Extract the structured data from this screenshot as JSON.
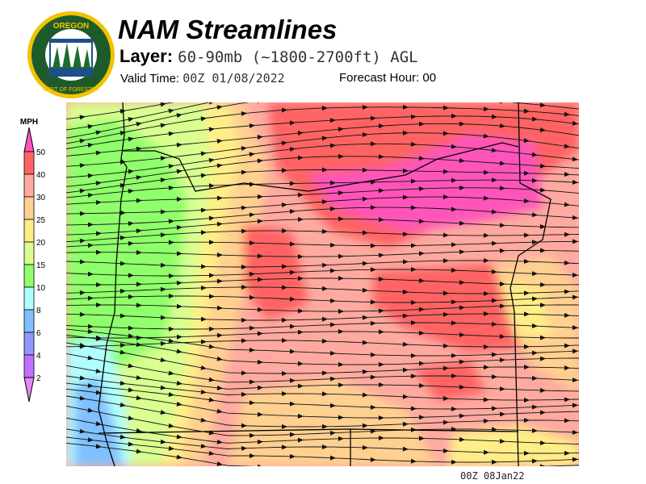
{
  "logo": {
    "top_text": "OREGON",
    "bottom_text": "DEPARTMENT OF FORESTRY"
  },
  "header": {
    "title": "NAM Streamlines",
    "layer_label": "Layer:",
    "layer_value": "60-90mb (~1800-2700ft) AGL",
    "valid_label": "Valid Time:",
    "valid_value": "00Z 01/08/2022",
    "forecast_label": "Forecast Hour:",
    "forecast_value": "00"
  },
  "colorbar": {
    "unit": "MPH",
    "ticks": [
      "50",
      "40",
      "30",
      "25",
      "20",
      "15",
      "10",
      "8",
      "6",
      "4",
      "2"
    ],
    "colors": [
      "#ff6464",
      "#ffaaa0",
      "#ffd090",
      "#ffee88",
      "#d8ff90",
      "#90ff6c",
      "#b0ffff",
      "#80c0ff",
      "#9098ff",
      "#c070ff"
    ],
    "over_color": "#ff55bb",
    "under_color": "#e488f4"
  },
  "footer": {
    "stamp": "00Z 08Jan22"
  }
}
